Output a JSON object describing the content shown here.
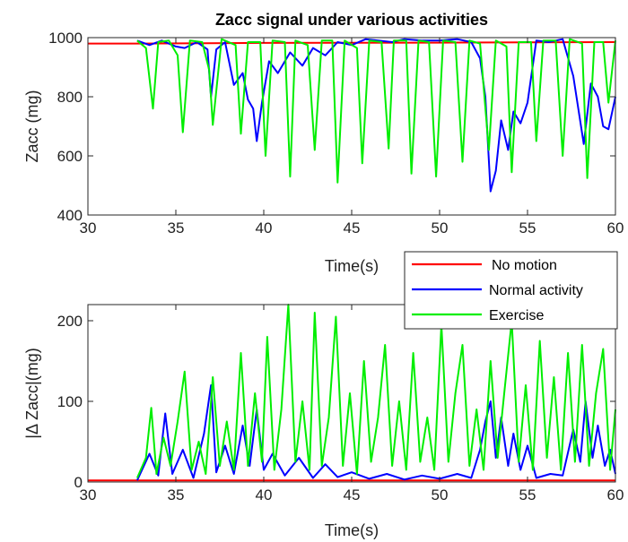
{
  "chart_data": [
    {
      "type": "line",
      "title": "Zacc signal under various activities",
      "xlabel": "Time(s)",
      "ylabel": "Zacc (mg)",
      "xlim": [
        30,
        60
      ],
      "ylim": [
        400,
        1000
      ],
      "xticks": [
        30,
        35,
        40,
        45,
        50,
        55,
        60
      ],
      "yticks": [
        400,
        600,
        800,
        1000
      ],
      "grid": false,
      "series": [
        {
          "name": "No motion",
          "color": "#ff0000",
          "points": [
            [
              30,
              980
            ],
            [
              33,
              980
            ],
            [
              40,
              982
            ],
            [
              50,
              983
            ],
            [
              60,
              985
            ]
          ]
        },
        {
          "name": "Normal activity",
          "color": "#0000ff",
          "points": [
            [
              32.8,
              990
            ],
            [
              33.5,
              975
            ],
            [
              34.2,
              990
            ],
            [
              35.0,
              970
            ],
            [
              35.5,
              965
            ],
            [
              36.2,
              985
            ],
            [
              36.8,
              960
            ],
            [
              37.0,
              800
            ],
            [
              37.3,
              960
            ],
            [
              37.8,
              985
            ],
            [
              38.3,
              840
            ],
            [
              38.8,
              880
            ],
            [
              39.1,
              790
            ],
            [
              39.4,
              760
            ],
            [
              39.6,
              650
            ],
            [
              39.9,
              780
            ],
            [
              40.3,
              920
            ],
            [
              40.8,
              880
            ],
            [
              41.5,
              950
            ],
            [
              42.2,
              905
            ],
            [
              42.8,
              965
            ],
            [
              43.5,
              940
            ],
            [
              44.2,
              985
            ],
            [
              45.0,
              975
            ],
            [
              45.8,
              995
            ],
            [
              46.5,
              990
            ],
            [
              47.3,
              985
            ],
            [
              48.0,
              995
            ],
            [
              49.0,
              990
            ],
            [
              50.0,
              990
            ],
            [
              51.0,
              995
            ],
            [
              51.8,
              985
            ],
            [
              52.3,
              930
            ],
            [
              52.6,
              800
            ],
            [
              52.9,
              480
            ],
            [
              53.2,
              550
            ],
            [
              53.5,
              720
            ],
            [
              53.9,
              620
            ],
            [
              54.2,
              750
            ],
            [
              54.6,
              710
            ],
            [
              55.0,
              780
            ],
            [
              55.5,
              990
            ],
            [
              56.2,
              985
            ],
            [
              57.0,
              995
            ],
            [
              57.6,
              870
            ],
            [
              58.2,
              640
            ],
            [
              58.6,
              845
            ],
            [
              59.0,
              800
            ],
            [
              59.3,
              700
            ],
            [
              59.6,
              690
            ],
            [
              60.0,
              800
            ]
          ]
        },
        {
          "name": "Exercise",
          "color": "#00ee00",
          "points": [
            [
              32.8,
              990
            ],
            [
              33.3,
              965
            ],
            [
              33.7,
              760
            ],
            [
              34.0,
              985
            ],
            [
              34.6,
              990
            ],
            [
              35.1,
              940
            ],
            [
              35.4,
              680
            ],
            [
              35.8,
              990
            ],
            [
              36.5,
              985
            ],
            [
              36.9,
              890
            ],
            [
              37.1,
              705
            ],
            [
              37.6,
              995
            ],
            [
              38.4,
              975
            ],
            [
              38.7,
              675
            ],
            [
              39.1,
              985
            ],
            [
              39.8,
              985
            ],
            [
              40.1,
              600
            ],
            [
              40.5,
              990
            ],
            [
              41.2,
              985
            ],
            [
              41.5,
              530
            ],
            [
              41.8,
              990
            ],
            [
              42.5,
              975
            ],
            [
              42.9,
              620
            ],
            [
              43.3,
              990
            ],
            [
              43.9,
              990
            ],
            [
              44.2,
              510
            ],
            [
              44.6,
              990
            ],
            [
              45.3,
              965
            ],
            [
              45.6,
              575
            ],
            [
              46.0,
              990
            ],
            [
              46.7,
              985
            ],
            [
              47.1,
              625
            ],
            [
              47.4,
              990
            ],
            [
              48.1,
              990
            ],
            [
              48.4,
              540
            ],
            [
              48.8,
              990
            ],
            [
              49.4,
              985
            ],
            [
              49.8,
              530
            ],
            [
              50.2,
              990
            ],
            [
              50.9,
              985
            ],
            [
              51.3,
              580
            ],
            [
              51.7,
              990
            ],
            [
              52.3,
              980
            ],
            [
              52.8,
              620
            ],
            [
              53.2,
              990
            ],
            [
              53.8,
              970
            ],
            [
              54.1,
              545
            ],
            [
              54.5,
              985
            ],
            [
              55.2,
              985
            ],
            [
              55.5,
              650
            ],
            [
              55.9,
              990
            ],
            [
              56.6,
              990
            ],
            [
              57.0,
              600
            ],
            [
              57.4,
              995
            ],
            [
              58.1,
              980
            ],
            [
              58.4,
              525
            ],
            [
              58.8,
              985
            ],
            [
              59.3,
              985
            ],
            [
              59.6,
              780
            ],
            [
              60.0,
              990
            ]
          ]
        }
      ]
    },
    {
      "type": "line",
      "title": "",
      "xlabel": "Time(s)",
      "ylabel": "|Δ Zacc|(mg)",
      "xlim": [
        30,
        60
      ],
      "ylim": [
        0,
        220
      ],
      "xticks": [
        30,
        35,
        40,
        45,
        50,
        55,
        60
      ],
      "yticks": [
        0,
        100,
        200
      ],
      "grid": false,
      "legend_position": "top-right",
      "series": [
        {
          "name": "No motion",
          "color": "#ff0000",
          "points": [
            [
              30,
              2
            ],
            [
              40,
              2
            ],
            [
              50,
              2
            ],
            [
              60,
              2
            ]
          ]
        },
        {
          "name": "Normal activity",
          "color": "#0000ff",
          "points": [
            [
              32.8,
              2
            ],
            [
              33.5,
              35
            ],
            [
              34.0,
              8
            ],
            [
              34.4,
              85
            ],
            [
              34.8,
              10
            ],
            [
              35.4,
              40
            ],
            [
              36.0,
              5
            ],
            [
              36.6,
              60
            ],
            [
              37.0,
              120
            ],
            [
              37.3,
              12
            ],
            [
              37.8,
              45
            ],
            [
              38.3,
              10
            ],
            [
              38.8,
              70
            ],
            [
              39.2,
              20
            ],
            [
              39.6,
              90
            ],
            [
              40.0,
              15
            ],
            [
              40.5,
              35
            ],
            [
              41.2,
              8
            ],
            [
              42.0,
              30
            ],
            [
              42.8,
              5
            ],
            [
              43.5,
              22
            ],
            [
              44.2,
              6
            ],
            [
              45.0,
              12
            ],
            [
              46.0,
              4
            ],
            [
              47.0,
              10
            ],
            [
              48.0,
              3
            ],
            [
              49.0,
              8
            ],
            [
              50.0,
              4
            ],
            [
              51.0,
              10
            ],
            [
              51.8,
              5
            ],
            [
              52.3,
              40
            ],
            [
              52.6,
              75
            ],
            [
              52.9,
              100
            ],
            [
              53.2,
              30
            ],
            [
              53.5,
              80
            ],
            [
              53.9,
              20
            ],
            [
              54.2,
              60
            ],
            [
              54.6,
              15
            ],
            [
              55.0,
              45
            ],
            [
              55.5,
              5
            ],
            [
              56.3,
              10
            ],
            [
              57.0,
              8
            ],
            [
              57.6,
              65
            ],
            [
              58.0,
              25
            ],
            [
              58.3,
              100
            ],
            [
              58.7,
              30
            ],
            [
              59.0,
              70
            ],
            [
              59.4,
              20
            ],
            [
              59.7,
              40
            ],
            [
              60.0,
              10
            ]
          ]
        },
        {
          "name": "Exercise",
          "color": "#00ee00",
          "points": [
            [
              32.8,
              5
            ],
            [
              33.3,
              30
            ],
            [
              33.6,
              92
            ],
            [
              33.9,
              10
            ],
            [
              34.3,
              55
            ],
            [
              34.7,
              20
            ],
            [
              35.1,
              75
            ],
            [
              35.5,
              137
            ],
            [
              35.9,
              15
            ],
            [
              36.3,
              50
            ],
            [
              36.7,
              10
            ],
            [
              37.1,
              130
            ],
            [
              37.5,
              20
            ],
            [
              37.9,
              75
            ],
            [
              38.3,
              15
            ],
            [
              38.7,
              160
            ],
            [
              39.1,
              20
            ],
            [
              39.5,
              110
            ],
            [
              39.9,
              25
            ],
            [
              40.2,
              180
            ],
            [
              40.6,
              15
            ],
            [
              41.0,
              90
            ],
            [
              41.4,
              220
            ],
            [
              41.8,
              25
            ],
            [
              42.2,
              100
            ],
            [
              42.6,
              15
            ],
            [
              42.9,
              210
            ],
            [
              43.3,
              20
            ],
            [
              43.7,
              80
            ],
            [
              44.1,
              205
            ],
            [
              44.5,
              20
            ],
            [
              44.9,
              110
            ],
            [
              45.3,
              10
            ],
            [
              45.7,
              150
            ],
            [
              46.1,
              25
            ],
            [
              46.5,
              80
            ],
            [
              46.9,
              170
            ],
            [
              47.3,
              20
            ],
            [
              47.7,
              100
            ],
            [
              48.1,
              15
            ],
            [
              48.5,
              160
            ],
            [
              48.9,
              25
            ],
            [
              49.3,
              80
            ],
            [
              49.7,
              15
            ],
            [
              50.1,
              195
            ],
            [
              50.5,
              25
            ],
            [
              50.9,
              110
            ],
            [
              51.3,
              170
            ],
            [
              51.7,
              20
            ],
            [
              52.1,
              90
            ],
            [
              52.5,
              15
            ],
            [
              52.9,
              150
            ],
            [
              53.3,
              30
            ],
            [
              53.7,
              115
            ],
            [
              54.1,
              200
            ],
            [
              54.5,
              25
            ],
            [
              54.9,
              120
            ],
            [
              55.3,
              15
            ],
            [
              55.7,
              175
            ],
            [
              56.1,
              30
            ],
            [
              56.5,
              130
            ],
            [
              56.9,
              15
            ],
            [
              57.3,
              160
            ],
            [
              57.7,
              25
            ],
            [
              58.1,
              170
            ],
            [
              58.5,
              20
            ],
            [
              58.9,
              110
            ],
            [
              59.3,
              165
            ],
            [
              59.7,
              15
            ],
            [
              60.0,
              90
            ]
          ]
        }
      ]
    }
  ]
}
